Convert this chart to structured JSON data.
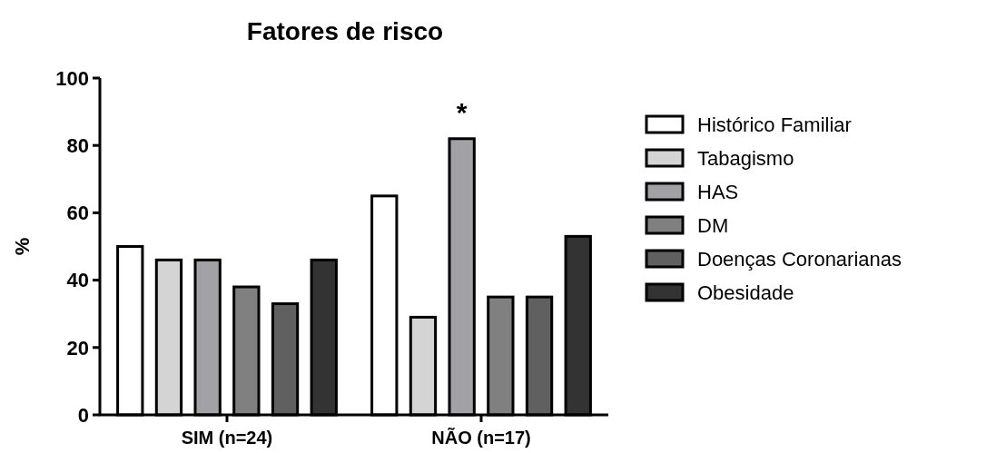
{
  "chart_data": {
    "type": "bar",
    "title": "Fatores de risco",
    "ylabel": "%",
    "categories": [
      "SIM (n=24)",
      "NÃO (n=17)"
    ],
    "series": [
      {
        "name": "Histórico Familiar",
        "color": "#ffffff",
        "values": [
          50,
          65
        ]
      },
      {
        "name": "Tabagismo",
        "color": "#d4d4d4",
        "values": [
          46,
          29
        ]
      },
      {
        "name": "HAS",
        "color": "#a2a1a6",
        "values": [
          46,
          82
        ]
      },
      {
        "name": "DM",
        "color": "#808080",
        "values": [
          38,
          35
        ]
      },
      {
        "name": "Doenças Coronarianas",
        "color": "#606060",
        "values": [
          33,
          35
        ]
      },
      {
        "name": "Obesidade",
        "color": "#333333",
        "values": [
          46,
          53
        ]
      }
    ],
    "annotations": [
      "*"
    ],
    "ylim": [
      0,
      100
    ],
    "yticks": [
      0,
      20,
      40,
      60,
      80,
      100
    ],
    "grid": false,
    "legend": "right"
  }
}
